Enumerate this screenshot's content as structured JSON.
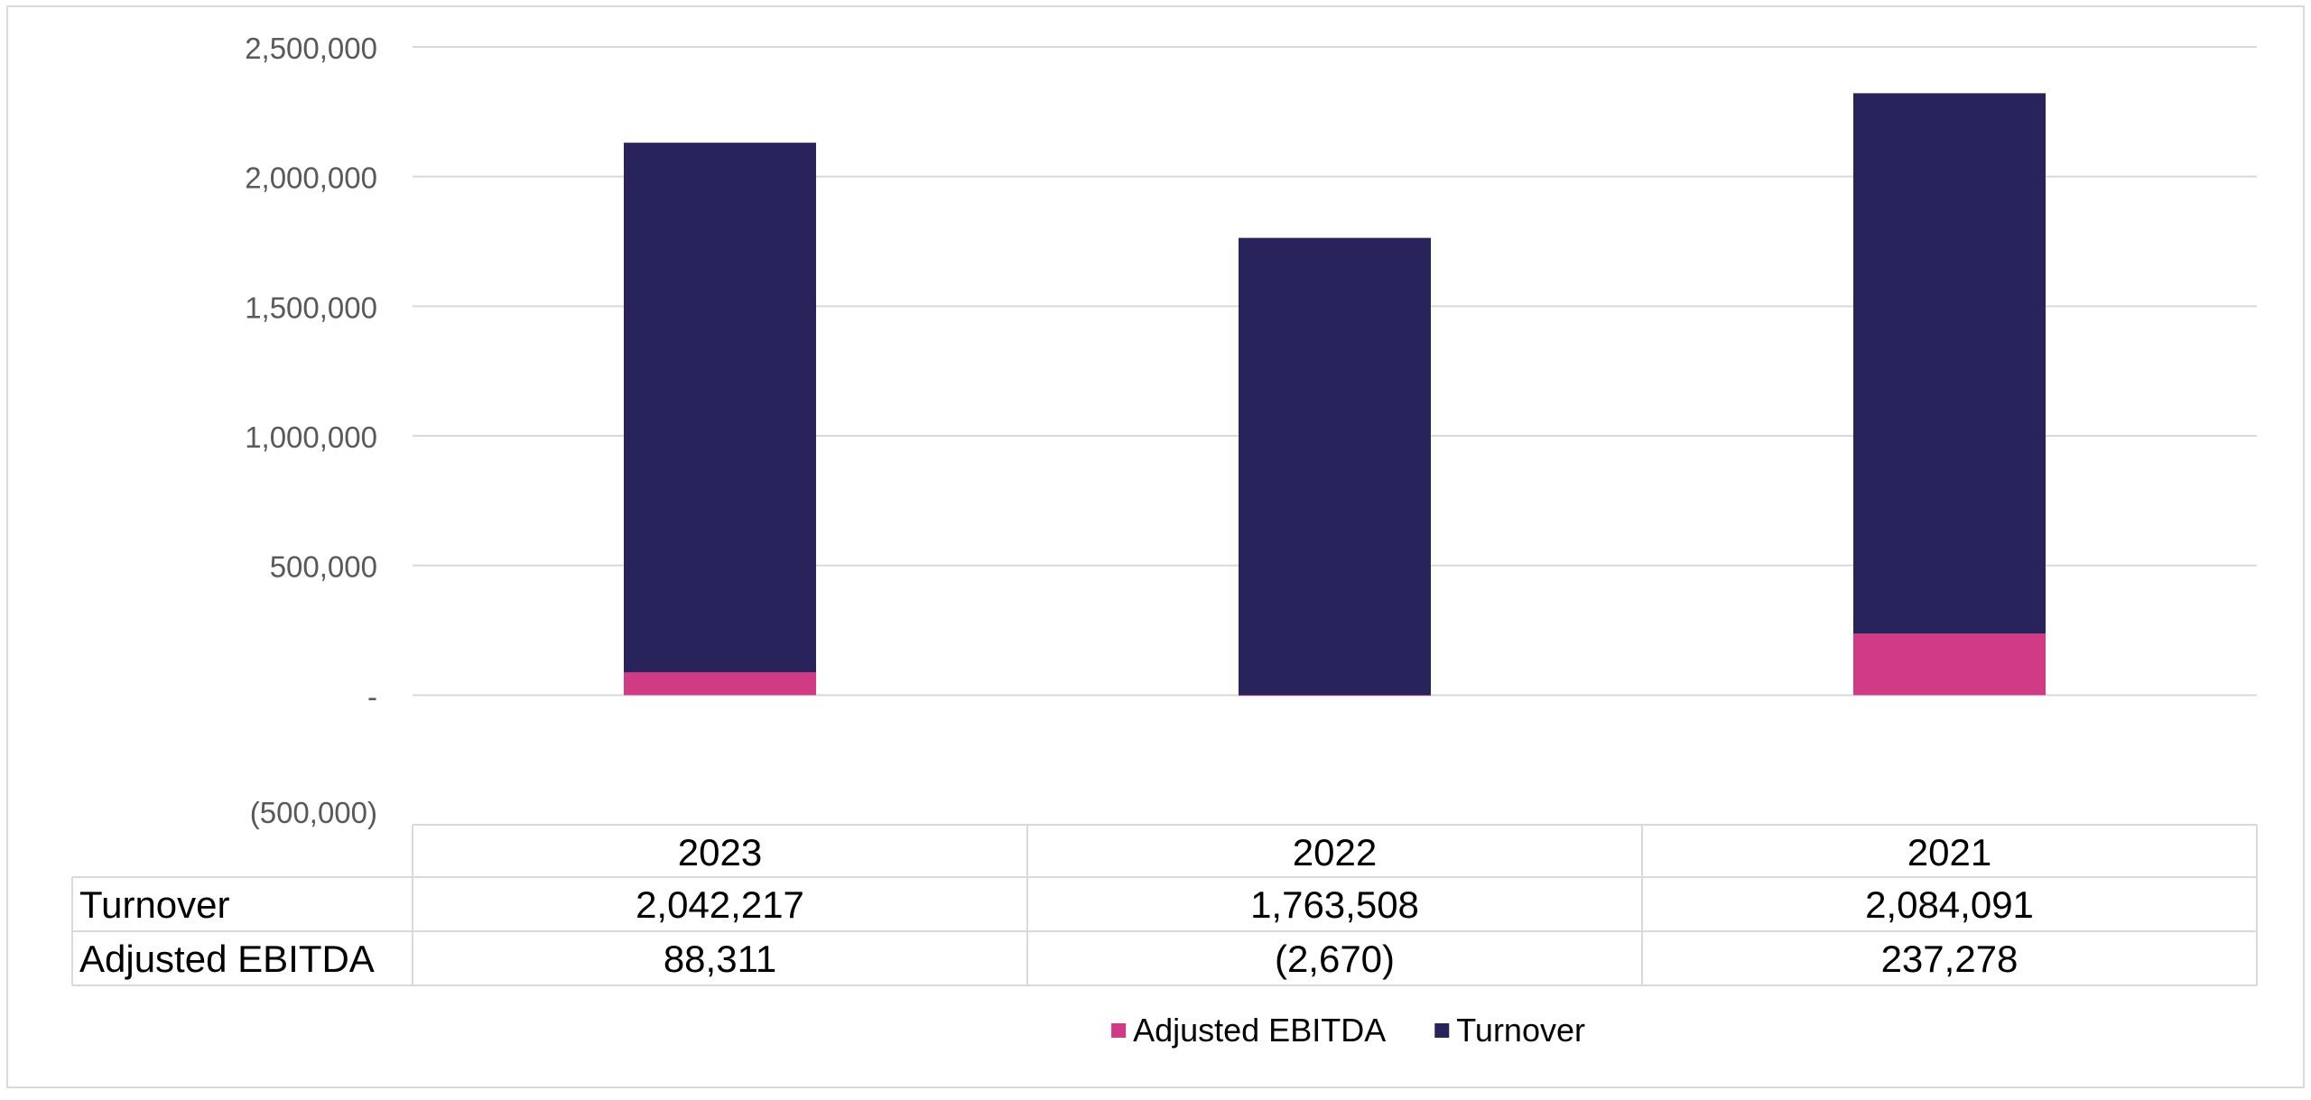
{
  "chart_data": {
    "type": "bar",
    "stacked": true,
    "categories": [
      "2023",
      "2022",
      "2021"
    ],
    "series": [
      {
        "name": "Adjusted EBITDA",
        "values": [
          88311,
          -2670,
          237278
        ],
        "color": "#D13A85",
        "labels": [
          "88,311",
          "(2,670)",
          "237,278"
        ]
      },
      {
        "name": "Turnover",
        "values": [
          2042217,
          1763508,
          2084091
        ],
        "color": "#28235A",
        "labels": [
          "2,042,217",
          "1,763,508",
          "2,084,091"
        ]
      }
    ],
    "ylim": [
      -500000,
      2500000
    ],
    "yticks": [
      2500000,
      2000000,
      1500000,
      1000000,
      500000,
      0,
      -500000
    ],
    "ytick_labels": [
      "2,500,000",
      "2,000,000",
      "1,500,000",
      "1,000,000",
      "500,000",
      "-",
      "(500,000)"
    ],
    "grid": true,
    "data_table": {
      "row_headers": [
        "Turnover",
        "Adjusted EBITDA"
      ]
    },
    "legend": {
      "position": "bottom",
      "entries": [
        "Adjusted EBITDA",
        "Turnover"
      ]
    }
  }
}
